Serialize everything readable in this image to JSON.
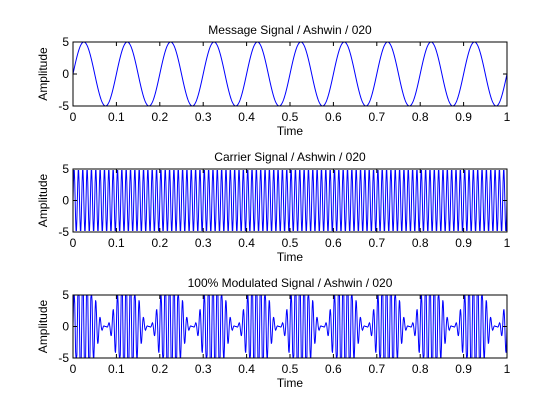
{
  "chart_data": [
    {
      "type": "line",
      "title": "Message Signal / Ashwin / 020",
      "xlabel": "Time",
      "ylabel": "Amplitude",
      "xlim": [
        0,
        1
      ],
      "ylim": [
        -5,
        5
      ],
      "xticks": [
        "0",
        "0.1",
        "0.2",
        "0.3",
        "0.4",
        "0.5",
        "0.6",
        "0.7",
        "0.8",
        "0.9",
        "1"
      ],
      "yticks": [
        "5",
        "0",
        "-5"
      ],
      "grid": false,
      "series": [
        {
          "color": "#0000ff",
          "signal": "sine",
          "amplitude": 5,
          "frequency_hz": 10,
          "sample_step": 0.001
        }
      ]
    },
    {
      "type": "line",
      "title": "Carrier Signal / Ashwin / 020",
      "xlabel": "Time",
      "ylabel": "Amplitude",
      "xlim": [
        0,
        1
      ],
      "ylim": [
        -5,
        5
      ],
      "xticks": [
        "0",
        "0.1",
        "0.2",
        "0.3",
        "0.4",
        "0.5",
        "0.6",
        "0.7",
        "0.8",
        "0.9",
        "1"
      ],
      "yticks": [
        "5",
        "0",
        "-5"
      ],
      "grid": false,
      "series": [
        {
          "color": "#0000ff",
          "signal": "sine",
          "amplitude": 5,
          "frequency_hz": 100,
          "sample_step": 0.001
        }
      ]
    },
    {
      "type": "line",
      "title": "100% Modulated Signal / Ashwin / 020",
      "xlabel": "Time",
      "ylabel": "Amplitude",
      "xlim": [
        0,
        1
      ],
      "ylim": [
        -5,
        5
      ],
      "xticks": [
        "0",
        "0.1",
        "0.2",
        "0.3",
        "0.4",
        "0.5",
        "0.6",
        "0.7",
        "0.8",
        "0.9",
        "1"
      ],
      "yticks": [
        "5",
        "0",
        "-5"
      ],
      "grid": false,
      "series": [
        {
          "color": "#0000ff",
          "signal": "am",
          "amplitude": 5,
          "carrier_hz": 100,
          "message_hz": 10,
          "modulation_index": 1.0,
          "sample_step": 0.001
        }
      ]
    }
  ]
}
